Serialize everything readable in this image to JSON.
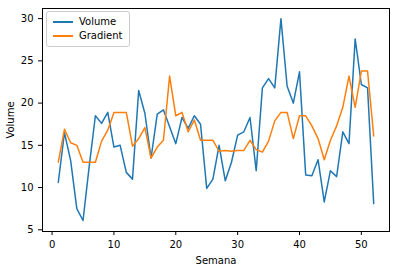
{
  "chart_data": {
    "type": "line",
    "x_label": "Semana",
    "y_label": "Volume",
    "x": [
      1,
      2,
      3,
      4,
      5,
      6,
      7,
      8,
      9,
      10,
      11,
      12,
      13,
      14,
      15,
      16,
      17,
      18,
      19,
      20,
      21,
      22,
      23,
      24,
      25,
      26,
      27,
      28,
      29,
      30,
      31,
      32,
      33,
      34,
      35,
      36,
      37,
      38,
      39,
      40,
      41,
      42,
      43,
      44,
      45,
      46,
      47,
      48,
      49,
      50,
      51,
      52
    ],
    "series": [
      {
        "name": "Volume",
        "color": "#1f77b4",
        "values": [
          10.6,
          16.5,
          13.2,
          7.5,
          6.1,
          12.5,
          18.5,
          17.6,
          18.9,
          14.8,
          15.0,
          11.8,
          11.0,
          21.5,
          18.8,
          13.5,
          18.7,
          19.2,
          17.2,
          15.2,
          18.3,
          17.0,
          18.5,
          17.5,
          9.9,
          11.0,
          15.0,
          10.8,
          13.0,
          16.2,
          16.6,
          18.3,
          12.0,
          21.8,
          22.9,
          21.8,
          30.0,
          22.0,
          20.0,
          23.7,
          11.5,
          11.4,
          13.3,
          8.3,
          12.0,
          11.3,
          16.6,
          15.2,
          27.6,
          22.2,
          21.8,
          8.1
        ]
      },
      {
        "name": "Gradient",
        "color": "#ff7f0e",
        "values": [
          13.0,
          16.9,
          15.3,
          15.0,
          13.0,
          13.0,
          13.0,
          15.5,
          16.8,
          18.9,
          18.9,
          18.9,
          14.9,
          15.8,
          17.1,
          13.5,
          14.8,
          15.6,
          23.2,
          18.5,
          18.9,
          16.6,
          18.0,
          15.6,
          15.6,
          15.6,
          14.3,
          14.4,
          14.3,
          14.4,
          14.4,
          15.6,
          14.5,
          14.2,
          15.5,
          17.9,
          18.9,
          18.9,
          15.8,
          18.5,
          18.5,
          17.3,
          15.8,
          13.3,
          15.6,
          17.3,
          19.5,
          23.2,
          19.5,
          23.8,
          23.8,
          16.1
        ]
      }
    ],
    "xlim": [
      -1.55,
      54.55
    ],
    "xticks": [
      0,
      10,
      20,
      30,
      40,
      50
    ],
    "ylim": [
      4.8,
      31.2
    ],
    "yticks": [
      5,
      10,
      15,
      20,
      25,
      30
    ],
    "grid": false,
    "legend": "upper left"
  }
}
